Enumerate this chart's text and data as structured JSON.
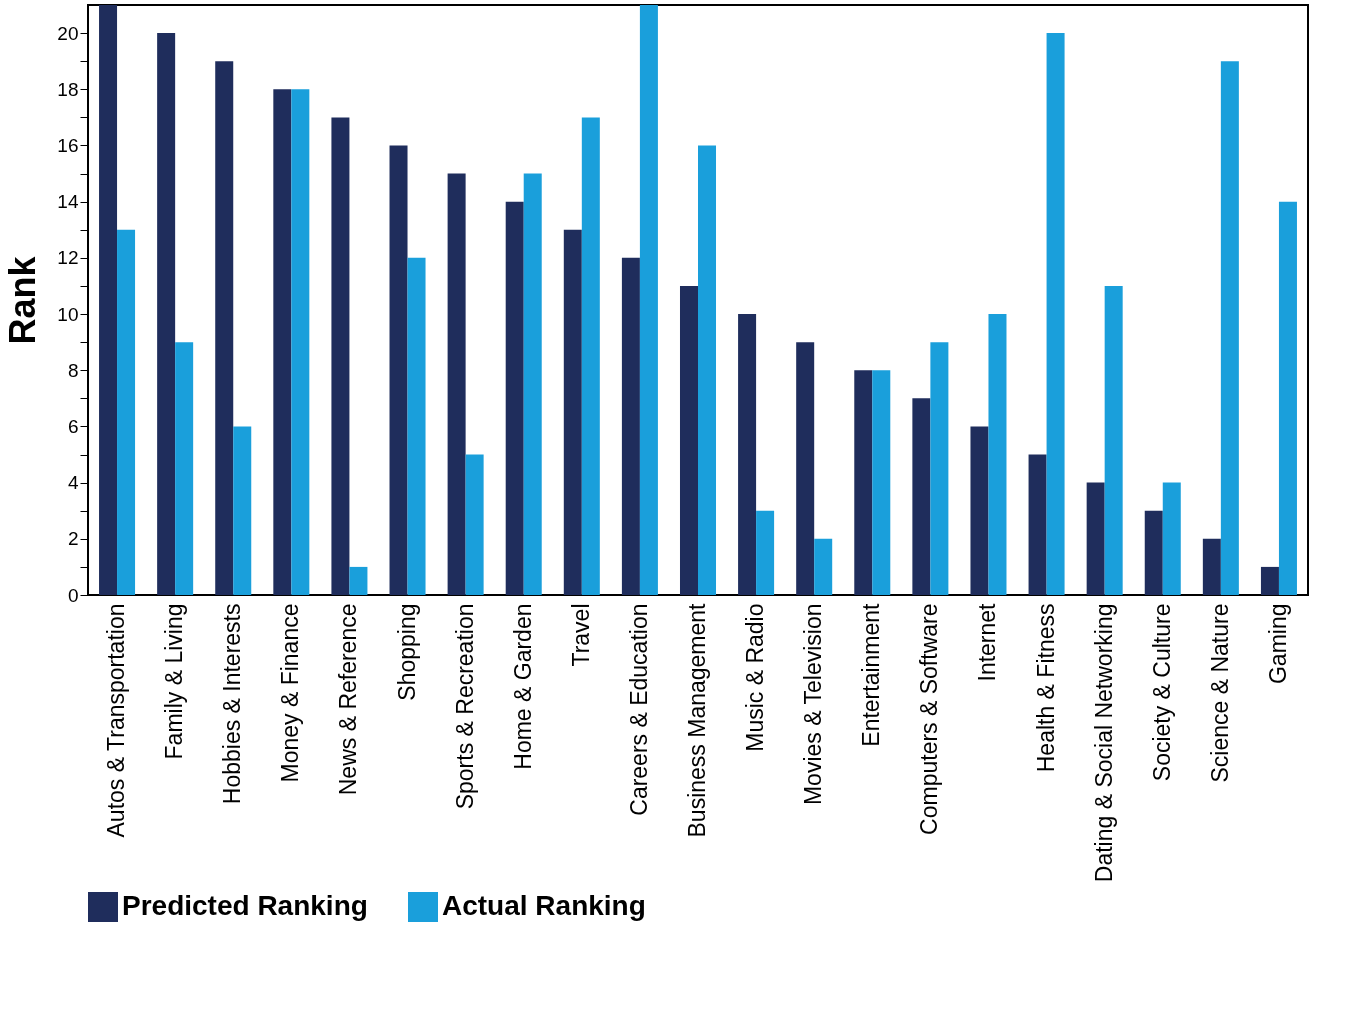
{
  "chart_data": {
    "type": "bar",
    "ylabel": "Rank",
    "categories": [
      "Autos & Transportation",
      "Family & Living",
      "Hobbies & Interests",
      "Money & Finance",
      "News & Reference",
      "Shopping",
      "Sports & Recreation",
      "Home & Garden",
      "Travel",
      "Careers & Education",
      "Business Management",
      "Music & Radio",
      "Movies & Television",
      "Entertainment",
      "Computers & Software",
      "Internet",
      "Health & Fitness",
      "Dating & Social Networking",
      "Society & Culture",
      "Science & Nature",
      "Gaming"
    ],
    "series": [
      {
        "name": "Predicted Ranking",
        "color": "#1f2d5c",
        "values": [
          21,
          20,
          19,
          18,
          17,
          16,
          15,
          14,
          13,
          12,
          11,
          10,
          9,
          8,
          7,
          6,
          5,
          4,
          3,
          2,
          1
        ]
      },
      {
        "name": "Actual Ranking",
        "color": "#1a9fdb",
        "values": [
          13,
          9,
          6,
          18,
          1,
          12,
          5,
          15,
          17,
          21,
          16,
          3,
          2,
          8,
          9,
          10,
          20,
          11,
          4,
          19,
          14
        ]
      }
    ],
    "ylim": [
      0,
      21
    ],
    "yticks": [
      0,
      {
        "value": 1,
        "label": null
      },
      2,
      {
        "value": 3,
        "label": null
      },
      4,
      {
        "value": 5,
        "label": null
      },
      6,
      {
        "value": 7,
        "label": null
      },
      8,
      {
        "value": 9,
        "label": null
      },
      10,
      {
        "value": 11,
        "label": null
      },
      12,
      {
        "value": 13,
        "label": null
      },
      14,
      {
        "value": 15,
        "label": null
      },
      16,
      {
        "value": 17,
        "label": null
      },
      18,
      {
        "value": 19,
        "label": null
      },
      20
    ],
    "grid": false,
    "legend": "bottom left"
  }
}
